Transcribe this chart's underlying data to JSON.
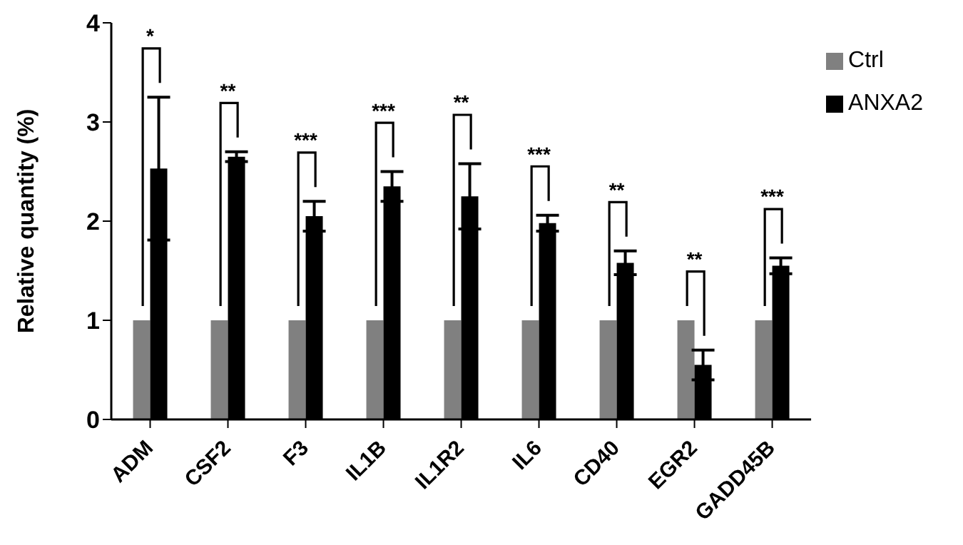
{
  "chart_data": {
    "type": "bar",
    "ylabel": "Relative quantity (%)",
    "categories": [
      "ADM",
      "CSF2",
      "F3",
      "IL1B",
      "IL1R2",
      "IL6",
      "CD40",
      "EGR2",
      "GADD45B"
    ],
    "series": [
      {
        "name": "Ctrl",
        "color": "#808080",
        "values": [
          1,
          1,
          1,
          1,
          1,
          1,
          1,
          1,
          1
        ]
      },
      {
        "name": "ANXA2",
        "color": "#000000",
        "values": [
          2.53,
          2.65,
          2.05,
          2.35,
          2.25,
          1.98,
          1.58,
          0.55,
          1.55
        ],
        "errors": [
          0.72,
          0.05,
          0.15,
          0.15,
          0.33,
          0.08,
          0.12,
          0.15,
          0.08
        ]
      }
    ],
    "ylim": [
      0,
      4
    ],
    "yticks": [
      0,
      1,
      2,
      3,
      4
    ],
    "grid": false,
    "legend": "top right",
    "annotations": [
      "*",
      "**",
      "***",
      "***",
      "**",
      "***",
      "**",
      "**",
      "***"
    ]
  }
}
